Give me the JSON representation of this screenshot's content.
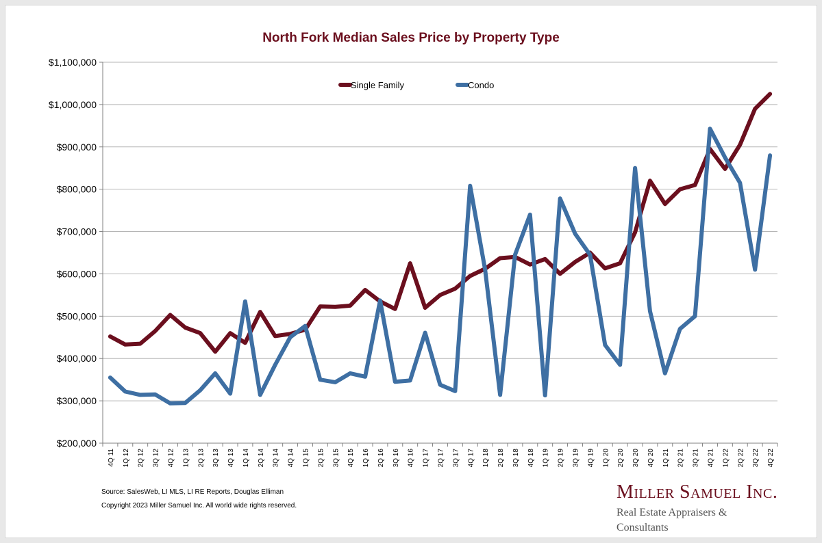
{
  "chart_data": {
    "type": "line",
    "title": "North Fork Median Sales Price by Property Type",
    "xlabel": "",
    "ylabel": "",
    "ylim": [
      200000,
      1100000
    ],
    "yticks": [
      "$200,000",
      "$300,000",
      "$400,000",
      "$500,000",
      "$600,000",
      "$700,000",
      "$800,000",
      "$900,000",
      "$1,000,000",
      "$1,100,000"
    ],
    "grid": true,
    "legend": "top-center",
    "categories": [
      "4Q 11",
      "1Q 12",
      "2Q 12",
      "3Q 12",
      "4Q 12",
      "1Q 13",
      "2Q 13",
      "3Q 13",
      "4Q 13",
      "1Q 14",
      "2Q 14",
      "3Q 14",
      "4Q 14",
      "1Q 15",
      "2Q 15",
      "3Q 15",
      "4Q 15",
      "1Q 16",
      "2Q 16",
      "3Q 16",
      "4Q 16",
      "1Q 17",
      "2Q 17",
      "3Q 17",
      "4Q 17",
      "1Q 18",
      "2Q 18",
      "3Q 18",
      "4Q 18",
      "1Q 19",
      "2Q 19",
      "3Q 19",
      "4Q 19",
      "1Q 20",
      "2Q 20",
      "3Q 20",
      "4Q 20",
      "1Q 21",
      "2Q 21",
      "3Q 21",
      "4Q 21",
      "1Q 22",
      "2Q 22",
      "3Q 22",
      "4Q 22"
    ],
    "series": [
      {
        "name": "Single Family",
        "color": "#6b0f1e",
        "values": [
          452000,
          433000,
          435000,
          465000,
          503000,
          473000,
          460000,
          416000,
          460000,
          437000,
          510000,
          453000,
          458000,
          468000,
          523000,
          522000,
          525000,
          562000,
          535000,
          517000,
          625000,
          520000,
          550000,
          565000,
          595000,
          612000,
          637000,
          640000,
          622000,
          635000,
          600000,
          628000,
          650000,
          613000,
          625000,
          698000,
          820000,
          765000,
          800000,
          810000,
          895000,
          848000,
          905000,
          990000,
          1025000
        ]
      },
      {
        "name": "Condo",
        "color": "#3e6fa3",
        "values": [
          355000,
          322000,
          314000,
          315000,
          294000,
          295000,
          325000,
          365000,
          317000,
          535000,
          314000,
          385000,
          450000,
          477000,
          350000,
          344000,
          365000,
          357000,
          537000,
          345000,
          348000,
          461000,
          338000,
          323000,
          808000,
          610000,
          314000,
          645000,
          740000,
          313000,
          778000,
          695000,
          645000,
          432000,
          385000,
          850000,
          512000,
          365000,
          470000,
          500000,
          943000,
          875000,
          815000,
          610000,
          880000
        ]
      }
    ]
  },
  "footer": {
    "source": "Source: SalesWeb, LI MLS, LI RE Reports, Douglas Elliman",
    "copyright": "Copyright 2023 Miller Samuel Inc.  All world wide rights reserved."
  },
  "logo": {
    "name": "Miller Samuel Inc.",
    "tagline": "Real Estate Appraisers & Consultants",
    "color": "#6b0f1e"
  },
  "colors": {
    "title": "#6b0f1e",
    "grid": "#b5b5b5",
    "axis": "#808080"
  }
}
